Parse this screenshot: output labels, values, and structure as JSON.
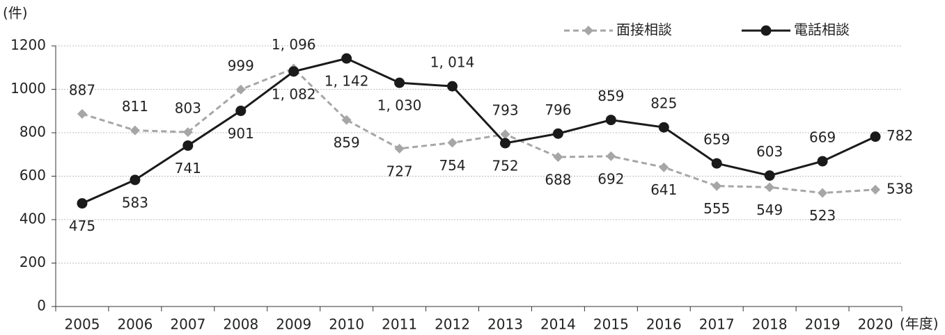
{
  "chart_data": {
    "type": "line",
    "y_axis_label": "(件)",
    "x_axis_label": "(年度)",
    "categories": [
      "2005",
      "2006",
      "2007",
      "2008",
      "2009",
      "2010",
      "2011",
      "2012",
      "2013",
      "2014",
      "2015",
      "2016",
      "2017",
      "2018",
      "2019",
      "2020"
    ],
    "series": [
      {
        "name": "面接相談",
        "color": "#a6a6a6",
        "line_style": "dashed",
        "marker": "diamond",
        "values": [
          887,
          811,
          803,
          999,
          1096,
          859,
          727,
          754,
          793,
          688,
          692,
          641,
          555,
          549,
          523,
          538
        ],
        "value_labels": [
          "887",
          "811",
          "803",
          "999",
          "1, 096",
          "859",
          "727",
          "754",
          "793",
          "688",
          "692",
          "641",
          "555",
          "549",
          "523",
          "538"
        ]
      },
      {
        "name": "電話相談",
        "color": "#1a1a1a",
        "line_style": "solid",
        "marker": "circle",
        "values": [
          475,
          583,
          741,
          901,
          1082,
          1142,
          1030,
          1014,
          752,
          796,
          859,
          825,
          659,
          603,
          669,
          782
        ],
        "value_labels": [
          "475",
          "583",
          "741",
          "901",
          "1, 082",
          "1, 142",
          "1, 030",
          "1, 014",
          "752",
          "796",
          "859",
          "825",
          "659",
          "603",
          "669",
          "782"
        ]
      }
    ],
    "ylim": [
      0,
      1200
    ],
    "yticks": [
      0,
      200,
      400,
      600,
      800,
      1000,
      1200
    ],
    "grid": true,
    "legend": "top-right"
  }
}
